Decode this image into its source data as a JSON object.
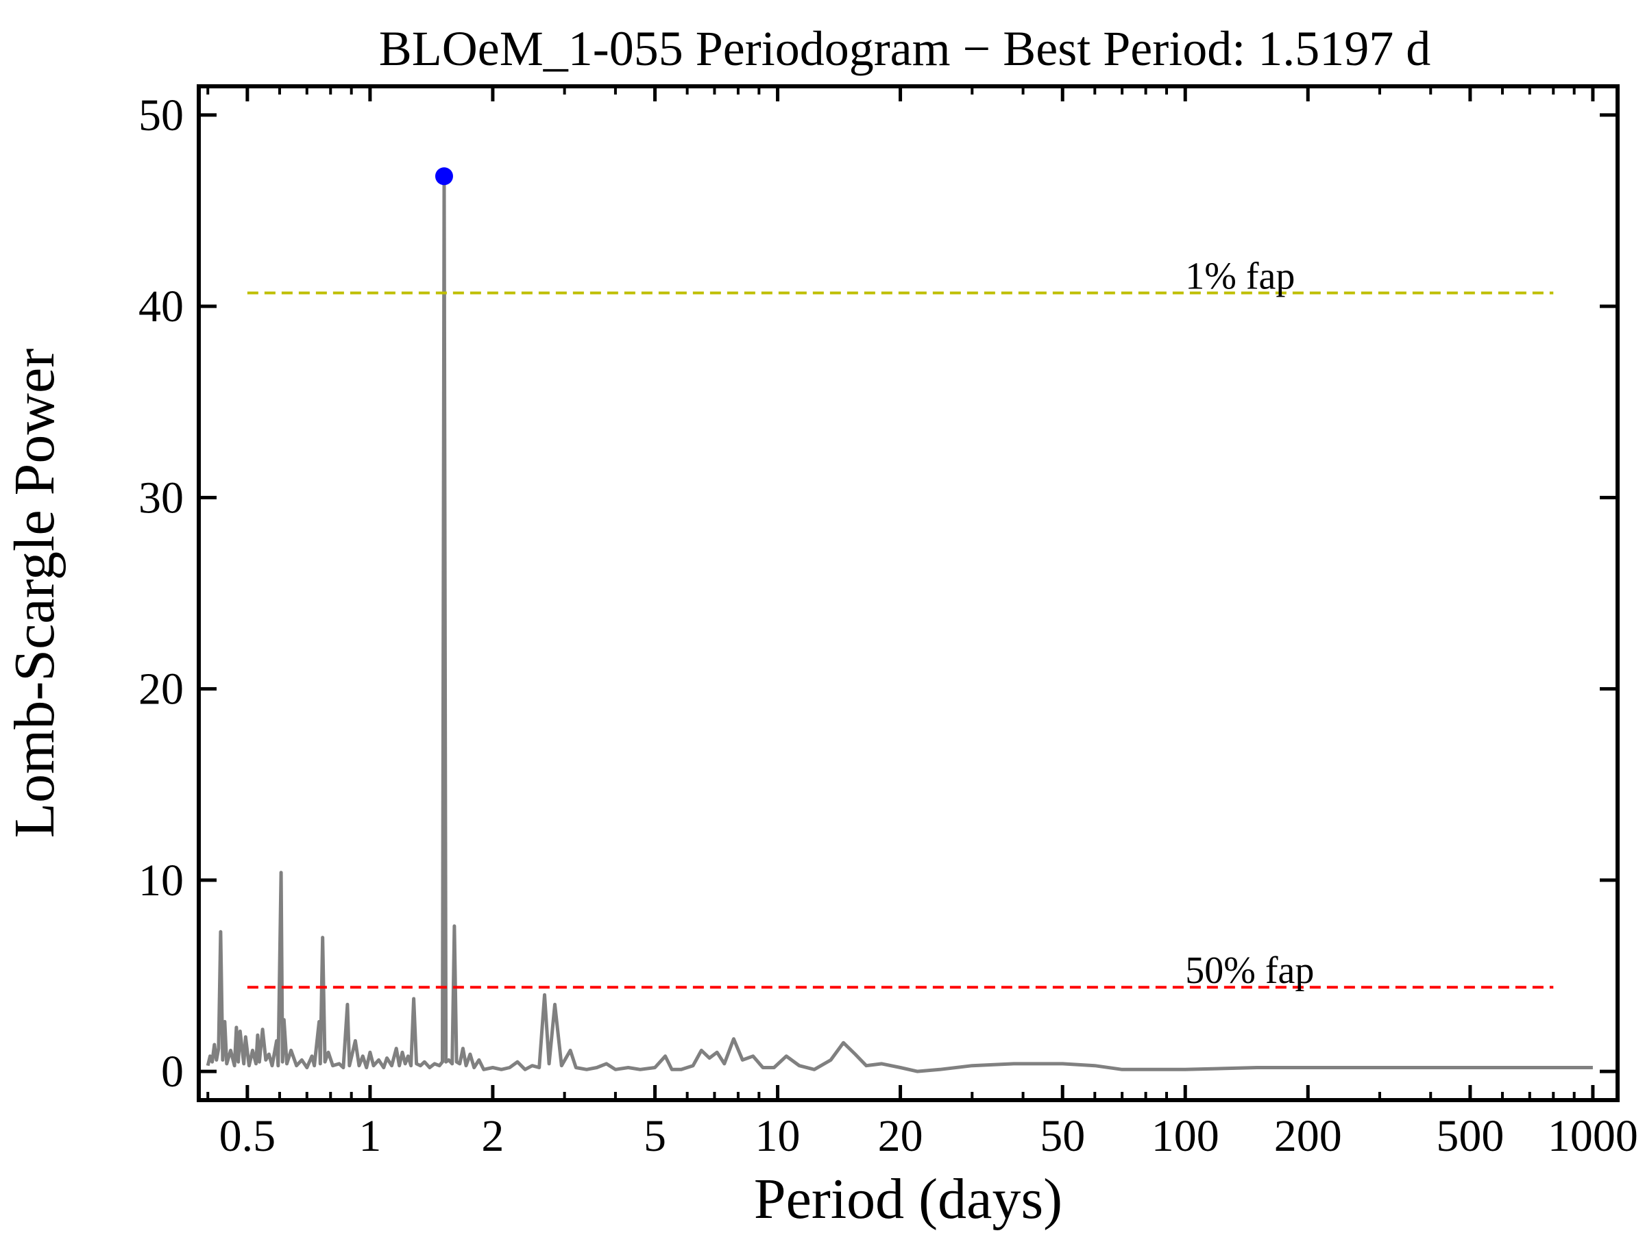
{
  "chart_data": {
    "type": "line",
    "title": "BLOeM_1-055 Periodogram − Best Period: 1.5197 d",
    "xlabel": "Period (days)",
    "ylabel": "Lomb-Scargle Power",
    "xscale": "log",
    "xlim": [
      0.38,
      1150
    ],
    "ylim": [
      -1.5,
      51.5
    ],
    "grid": false,
    "x_ticks": [
      0.5,
      1,
      2,
      5,
      10,
      20,
      50,
      100,
      200,
      500,
      1000
    ],
    "x_tick_labels": [
      "0.5",
      "1",
      "2",
      "5",
      "10",
      "20",
      "50",
      "100",
      "200",
      "500",
      "1000"
    ],
    "y_ticks": [
      0,
      10,
      20,
      30,
      40,
      50
    ],
    "y_tick_labels": [
      "0",
      "10",
      "20",
      "30",
      "40",
      "50"
    ],
    "colors": {
      "periodogram": "#808080",
      "best_period_marker": "#0000ff",
      "fap_1": "#bfbf00",
      "fap_50": "#ff0000"
    },
    "best_period": {
      "x": 1.5197,
      "y": 46.8
    },
    "fap_lines": [
      {
        "label": "1% fap",
        "y": 40.7,
        "x_start": 0.5,
        "x_end": 800,
        "label_x": 100
      },
      {
        "label": "50% fap",
        "y": 4.4,
        "x_start": 0.5,
        "x_end": 800,
        "label_x": 100
      }
    ],
    "series": [
      {
        "values": [
          [
            0.4,
            0.3
          ],
          [
            0.405,
            0.8
          ],
          [
            0.41,
            0.5
          ],
          [
            0.415,
            1.4
          ],
          [
            0.42,
            0.6
          ],
          [
            0.425,
            1.2
          ],
          [
            0.43,
            7.3
          ],
          [
            0.435,
            0.6
          ],
          [
            0.44,
            2.6
          ],
          [
            0.445,
            0.4
          ],
          [
            0.455,
            1.1
          ],
          [
            0.465,
            0.3
          ],
          [
            0.47,
            2.3
          ],
          [
            0.475,
            0.5
          ],
          [
            0.48,
            2.1
          ],
          [
            0.49,
            0.4
          ],
          [
            0.495,
            1.8
          ],
          [
            0.505,
            0.3
          ],
          [
            0.515,
            1.1
          ],
          [
            0.525,
            0.4
          ],
          [
            0.53,
            1.9
          ],
          [
            0.535,
            0.5
          ],
          [
            0.545,
            2.2
          ],
          [
            0.555,
            0.6
          ],
          [
            0.565,
            0.9
          ],
          [
            0.575,
            0.3
          ],
          [
            0.59,
            1.6
          ],
          [
            0.595,
            0.3
          ],
          [
            0.605,
            10.4
          ],
          [
            0.61,
            0.5
          ],
          [
            0.615,
            2.7
          ],
          [
            0.625,
            0.4
          ],
          [
            0.64,
            1.1
          ],
          [
            0.66,
            0.3
          ],
          [
            0.68,
            0.6
          ],
          [
            0.7,
            0.2
          ],
          [
            0.72,
            0.8
          ],
          [
            0.73,
            0.3
          ],
          [
            0.75,
            2.6
          ],
          [
            0.755,
            0.4
          ],
          [
            0.765,
            7.0
          ],
          [
            0.775,
            0.5
          ],
          [
            0.79,
            1.0
          ],
          [
            0.81,
            0.3
          ],
          [
            0.84,
            0.4
          ],
          [
            0.86,
            0.2
          ],
          [
            0.88,
            3.5
          ],
          [
            0.89,
            0.3
          ],
          [
            0.92,
            1.6
          ],
          [
            0.94,
            0.3
          ],
          [
            0.96,
            0.8
          ],
          [
            0.98,
            0.2
          ],
          [
            1.0,
            1.0
          ],
          [
            1.02,
            0.3
          ],
          [
            1.05,
            0.6
          ],
          [
            1.08,
            0.2
          ],
          [
            1.1,
            0.7
          ],
          [
            1.13,
            0.3
          ],
          [
            1.16,
            1.2
          ],
          [
            1.18,
            0.3
          ],
          [
            1.2,
            1.0
          ],
          [
            1.22,
            0.4
          ],
          [
            1.24,
            0.8
          ],
          [
            1.26,
            0.3
          ],
          [
            1.28,
            3.8
          ],
          [
            1.3,
            0.4
          ],
          [
            1.33,
            0.3
          ],
          [
            1.36,
            0.5
          ],
          [
            1.4,
            0.2
          ],
          [
            1.44,
            0.4
          ],
          [
            1.48,
            0.3
          ],
          [
            1.505,
            0.5
          ],
          [
            1.5197,
            46.8
          ],
          [
            1.535,
            0.5
          ],
          [
            1.56,
            0.6
          ],
          [
            1.59,
            0.4
          ],
          [
            1.61,
            7.6
          ],
          [
            1.63,
            0.5
          ],
          [
            1.66,
            0.4
          ],
          [
            1.69,
            1.2
          ],
          [
            1.72,
            0.3
          ],
          [
            1.76,
            0.9
          ],
          [
            1.8,
            0.2
          ],
          [
            1.85,
            0.6
          ],
          [
            1.9,
            0.1
          ],
          [
            2.0,
            0.2
          ],
          [
            2.1,
            0.1
          ],
          [
            2.2,
            0.2
          ],
          [
            2.3,
            0.5
          ],
          [
            2.4,
            0.1
          ],
          [
            2.5,
            0.3
          ],
          [
            2.6,
            0.2
          ],
          [
            2.68,
            4.0
          ],
          [
            2.75,
            0.4
          ],
          [
            2.84,
            3.5
          ],
          [
            2.95,
            0.3
          ],
          [
            3.1,
            1.1
          ],
          [
            3.2,
            0.2
          ],
          [
            3.4,
            0.1
          ],
          [
            3.6,
            0.2
          ],
          [
            3.8,
            0.4
          ],
          [
            4.0,
            0.1
          ],
          [
            4.3,
            0.2
          ],
          [
            4.6,
            0.1
          ],
          [
            5.0,
            0.2
          ],
          [
            5.3,
            0.8
          ],
          [
            5.5,
            0.1
          ],
          [
            5.8,
            0.1
          ],
          [
            6.2,
            0.3
          ],
          [
            6.5,
            1.1
          ],
          [
            6.8,
            0.7
          ],
          [
            7.1,
            1.0
          ],
          [
            7.4,
            0.4
          ],
          [
            7.8,
            1.7
          ],
          [
            8.2,
            0.6
          ],
          [
            8.7,
            0.8
          ],
          [
            9.2,
            0.2
          ],
          [
            9.8,
            0.2
          ],
          [
            10.5,
            0.8
          ],
          [
            11.3,
            0.3
          ],
          [
            12.3,
            0.1
          ],
          [
            13.5,
            0.6
          ],
          [
            14.5,
            1.5
          ],
          [
            15.5,
            0.9
          ],
          [
            16.5,
            0.3
          ],
          [
            18.0,
            0.4
          ],
          [
            20.0,
            0.2
          ],
          [
            22.0,
            0.0
          ],
          [
            25.0,
            0.1
          ],
          [
            30.0,
            0.3
          ],
          [
            38.0,
            0.4
          ],
          [
            50.0,
            0.4
          ],
          [
            60.0,
            0.3
          ],
          [
            70.0,
            0.1
          ],
          [
            80.0,
            0.1
          ],
          [
            100.0,
            0.1
          ],
          [
            150.0,
            0.2
          ],
          [
            300.0,
            0.2
          ],
          [
            600.0,
            0.2
          ],
          [
            1000.0,
            0.2
          ]
        ]
      }
    ]
  }
}
